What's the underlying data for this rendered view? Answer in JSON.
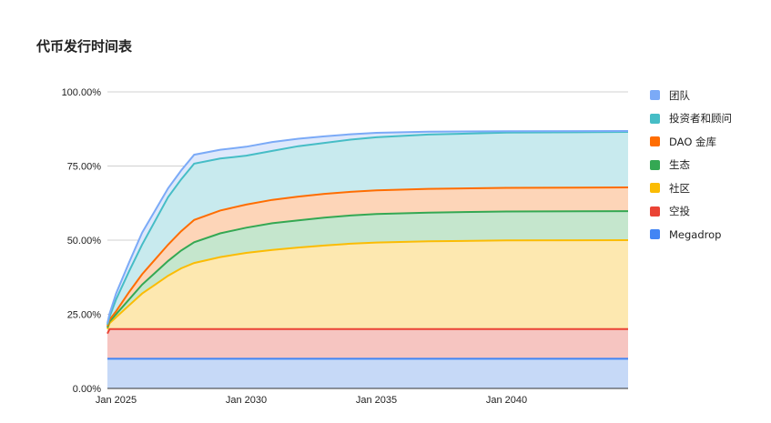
{
  "chart_data": {
    "type": "area",
    "stacked": true,
    "title": "代币发行时间表",
    "xlabel": "",
    "ylabel": "",
    "x_ticks": [
      "Jan 2025",
      "Jan 2030",
      "Jan 2035",
      "Jan 2040"
    ],
    "y_ticks": [
      "0.00%",
      "25.00%",
      "50.00%",
      "75.00%",
      "100.00%"
    ],
    "ylim": [
      0,
      100
    ],
    "xlim": [
      "2024-09",
      "2044-09"
    ],
    "grid": true,
    "legend_position": "right",
    "x": [
      "2024-09",
      "2024-10",
      "2025-01",
      "2025-07",
      "2026-01",
      "2026-07",
      "2027-01",
      "2027-07",
      "2028-01",
      "2029-01",
      "2030-01",
      "2031-01",
      "2032-01",
      "2033-01",
      "2034-01",
      "2035-01",
      "2037-01",
      "2040-01",
      "2044-09"
    ],
    "series": [
      {
        "name": "Megadrop",
        "color": "#4285f4",
        "fill": "#c6d9f7",
        "values": [
          10,
          10,
          10,
          10,
          10,
          10,
          10,
          10,
          10,
          10,
          10,
          10,
          10,
          10,
          10,
          10,
          10,
          10,
          10
        ]
      },
      {
        "name": "空投",
        "color": "#ea4335",
        "fill": "#f6c5c1",
        "values": [
          8.5,
          10,
          10,
          10,
          10,
          10,
          10,
          10,
          10,
          10,
          10,
          10,
          10,
          10,
          10,
          10,
          10,
          10,
          10
        ]
      },
      {
        "name": "社区",
        "color": "#fbbc04",
        "fill": "#fde8b0",
        "values": [
          1.5,
          2,
          4,
          8,
          12,
          15,
          18,
          20.5,
          22.3,
          24.3,
          25.7,
          26.7,
          27.5,
          28.2,
          28.8,
          29.2,
          29.6,
          29.9,
          30
        ]
      },
      {
        "name": "生态",
        "color": "#34a853",
        "fill": "#c5e6cd",
        "values": [
          0.5,
          0.6,
          1,
          2,
          3,
          4,
          5,
          6,
          7,
          8,
          8.5,
          9,
          9.2,
          9.4,
          9.5,
          9.6,
          9.7,
          9.75,
          9.8
        ]
      },
      {
        "name": "DAO 金库",
        "color": "#ff6d01",
        "fill": "#fdd5b8",
        "values": [
          0.5,
          0.6,
          1,
          2.5,
          3.5,
          4.5,
          5.5,
          6.5,
          7.5,
          7.7,
          7.8,
          7.9,
          8,
          8,
          8,
          8,
          8,
          8,
          8
        ]
      },
      {
        "name": "投资者和顾问",
        "color": "#46bdc6",
        "fill": "#c8eaee",
        "values": [
          0.5,
          1,
          4,
          7,
          10,
          13,
          16,
          17.5,
          19,
          17.5,
          16.5,
          16.5,
          17,
          17.2,
          17.6,
          17.9,
          18.3,
          18.6,
          18.7
        ]
      },
      {
        "name": "团队",
        "color": "#7baaf7",
        "fill": "#dde8fb",
        "values": [
          0.5,
          1,
          2,
          3,
          4,
          3.5,
          3,
          3,
          3,
          3,
          3,
          3,
          2.5,
          2.2,
          1.8,
          1.5,
          1,
          0.5,
          0.3
        ]
      }
    ]
  }
}
